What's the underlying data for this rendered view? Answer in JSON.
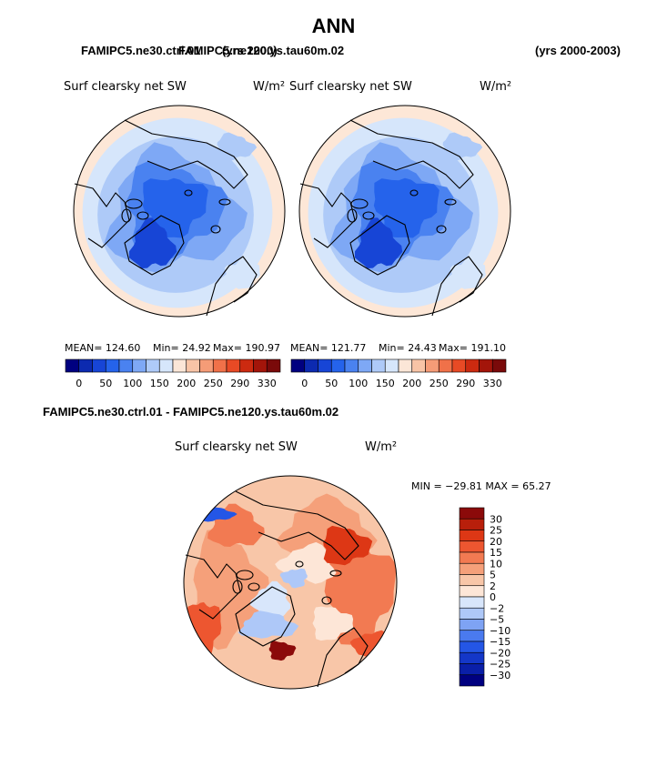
{
  "header": {
    "title": "ANN",
    "case_left": "FAMIPC5.ne30.ctrl.01",
    "case_center": "FAMIPC5.ne120.ys.tau60m.02",
    "case_years_overlap": "(yrs 2000)",
    "case_years_right": "(yrs 2000-2003)",
    "diff_title": "FAMIPC5.ne30.ctrl.01 - FAMIPC5.ne120.ys.tau60m.02"
  },
  "colors": {
    "land_outline": "#000000",
    "ocean_far": "#fde7d7",
    "abs_levels": [
      "#000080",
      "#0c2ab0",
      "#1745d6",
      "#2563eb",
      "#4a82f0",
      "#7ea8f5",
      "#aecaf8",
      "#d6e6fb",
      "#fbe6d7",
      "#f8c4a6",
      "#f59c77",
      "#f07149",
      "#e84a25",
      "#cc2a10",
      "#a3150a",
      "#7a0a0a"
    ],
    "diff_levels": [
      "#000080",
      "#0a1fa8",
      "#1437c8",
      "#2456e6",
      "#4a7aef",
      "#7ea3f4",
      "#aec8f8",
      "#d8e6fb",
      "#fde6d7",
      "#f8c6a8",
      "#f5a07a",
      "#f27a52",
      "#ed5630",
      "#dd3715",
      "#b81f0b",
      "#8b0a0a"
    ]
  },
  "chart_data": [
    {
      "type": "heatmap",
      "projection": "north-polar-stereographic",
      "title": "Surf clearsky net SW",
      "units": "W/m²",
      "case": "FAMIPC5.ne30.ctrl.01",
      "years": "(yrs 2000)",
      "stats": {
        "mean_label": "MEAN= 124.60",
        "min_label": "Min=  24.92",
        "max_label": "Max= 190.97",
        "mean": 124.6,
        "min": 24.92,
        "max": 190.97
      },
      "colorbar_ticks": [
        "0",
        "50",
        "100",
        "150",
        "200",
        "250",
        "290",
        "330"
      ],
      "colorbar_levels": [
        0,
        25,
        50,
        75,
        100,
        125,
        150,
        175,
        200,
        225,
        250,
        270,
        290,
        310,
        330
      ]
    },
    {
      "type": "heatmap",
      "projection": "north-polar-stereographic",
      "title": "Surf clearsky net SW",
      "units": "W/m²",
      "case": "FAMIPC5.ne120.ys.tau60m.02",
      "years": "(yrs 2000-2003)",
      "stats": {
        "mean_label": "MEAN= 121.77",
        "min_label": "Min=  24.43",
        "max_label": "Max= 191.10",
        "mean": 121.77,
        "min": 24.43,
        "max": 191.1
      },
      "colorbar_ticks": [
        "0",
        "50",
        "100",
        "150",
        "200",
        "250",
        "290",
        "330"
      ],
      "colorbar_levels": [
        0,
        25,
        50,
        75,
        100,
        125,
        150,
        175,
        200,
        225,
        250,
        270,
        290,
        310,
        330
      ]
    },
    {
      "type": "heatmap",
      "projection": "north-polar-stereographic",
      "title": "Surf clearsky net SW",
      "units": "W/m²",
      "case": "FAMIPC5.ne30.ctrl.01 - FAMIPC5.ne120.ys.tau60m.02",
      "stats": {
        "minmax_label": "MIN = −29.81  MAX =  65.27",
        "min": -29.81,
        "max": 65.27
      },
      "colorbar_ticks": [
        "30",
        "25",
        "20",
        "15",
        "10",
        "5",
        "2",
        "0",
        "−2",
        "−5",
        "−10",
        "−15",
        "−20",
        "−25",
        "−30"
      ],
      "colorbar_levels": [
        30,
        25,
        20,
        15,
        10,
        5,
        2,
        0,
        -2,
        -5,
        -10,
        -15,
        -20,
        -25,
        -30
      ]
    }
  ]
}
